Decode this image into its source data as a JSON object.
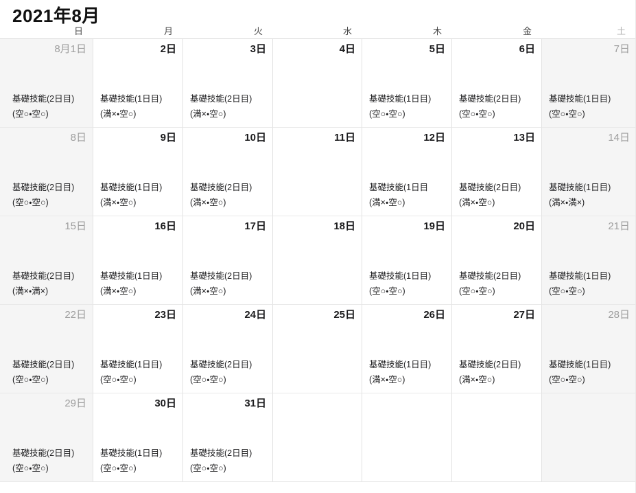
{
  "title": "2021年8月",
  "weekdays": [
    "日",
    "月",
    "火",
    "水",
    "木",
    "金",
    "土"
  ],
  "colors": {
    "background": "#ffffff",
    "weekend_cell_bg": "#f5f5f5",
    "grid_line": "#e2e2e2",
    "header_line": "#d9d9d9",
    "title_text": "#111111",
    "weekday_label": "#4a4a4a",
    "saturday_label": "#b5b5b5",
    "date_weekday": "#1c1c1e",
    "date_weekend": "#9e9e9e",
    "event_text": "#1d1d1f"
  },
  "weeks": [
    [
      {
        "date": "8月1日",
        "event": {
          "title": "基礎技能(2日目)",
          "availability": "(空○・空○)"
        }
      },
      {
        "date": "2日",
        "event": {
          "title": "基礎技能(1日目)",
          "availability": "(満×・空○)"
        }
      },
      {
        "date": "3日",
        "event": {
          "title": "基礎技能(2日目)",
          "availability": "(満×・空○)"
        }
      },
      {
        "date": "4日",
        "event": null
      },
      {
        "date": "5日",
        "event": {
          "title": "基礎技能(1日目)",
          "availability": "(空○・空○)"
        }
      },
      {
        "date": "6日",
        "event": {
          "title": "基礎技能(2日目)",
          "availability": "(空○・空○)"
        }
      },
      {
        "date": "7日",
        "event": {
          "title": "基礎技能(1日目)",
          "availability": "(空○・空○)"
        }
      }
    ],
    [
      {
        "date": "8日",
        "event": {
          "title": "基礎技能(2日目)",
          "availability": "(空○・空○)"
        }
      },
      {
        "date": "9日",
        "event": {
          "title": "基礎技能(1日目)",
          "availability": "(満×・空○)"
        }
      },
      {
        "date": "10日",
        "event": {
          "title": "基礎技能(2日目)",
          "availability": "(満×・空○)"
        }
      },
      {
        "date": "11日",
        "event": null
      },
      {
        "date": "12日",
        "event": {
          "title": "基礎技能(1日目",
          "availability": "(満×・空○)"
        }
      },
      {
        "date": "13日",
        "event": {
          "title": "基礎技能(2日目)",
          "availability": "(満×・空○)"
        }
      },
      {
        "date": "14日",
        "event": {
          "title": "基礎技能(1日目)",
          "availability": "(満×・満×)"
        }
      }
    ],
    [
      {
        "date": "15日",
        "event": {
          "title": "基礎技能(2日目)",
          "availability": "(満×・満×)"
        }
      },
      {
        "date": "16日",
        "event": {
          "title": "基礎技能(1日目)",
          "availability": "(満×・空○)"
        }
      },
      {
        "date": "17日",
        "event": {
          "title": "基礎技能(2日目)",
          "availability": "(満×・空○)"
        }
      },
      {
        "date": "18日",
        "event": null
      },
      {
        "date": "19日",
        "event": {
          "title": "基礎技能(1日目)",
          "availability": "(空○・空○)"
        }
      },
      {
        "date": "20日",
        "event": {
          "title": "基礎技能(2日目)",
          "availability": "(空○・空○)"
        }
      },
      {
        "date": "21日",
        "event": {
          "title": "基礎技能(1日目)",
          "availability": "(空○・空○)"
        }
      }
    ],
    [
      {
        "date": "22日",
        "event": {
          "title": "基礎技能(2日目)",
          "availability": "(空○・空○)"
        }
      },
      {
        "date": "23日",
        "event": {
          "title": "基礎技能(1日目)",
          "availability": "(空○・空○)"
        }
      },
      {
        "date": "24日",
        "event": {
          "title": "基礎技能(2日目)",
          "availability": "(空○・空○)"
        }
      },
      {
        "date": "25日",
        "event": null
      },
      {
        "date": "26日",
        "event": {
          "title": "基礎技能(1日目)",
          "availability": "(満×・空○)"
        }
      },
      {
        "date": "27日",
        "event": {
          "title": "基礎技能(2日目)",
          "availability": "(満×・空○)"
        }
      },
      {
        "date": "28日",
        "event": {
          "title": "基礎技能(1日目)",
          "availability": "(空○・空○)"
        }
      }
    ],
    [
      {
        "date": "29日",
        "event": {
          "title": "基礎技能(2日目)",
          "availability": "(空○・空○)"
        }
      },
      {
        "date": "30日",
        "event": {
          "title": "基礎技能(1日目)",
          "availability": "(空○・空○)"
        }
      },
      {
        "date": "31日",
        "event": {
          "title": "基礎技能(2日目)",
          "availability": "(空○・空○)"
        }
      },
      {
        "date": "",
        "event": null
      },
      {
        "date": "",
        "event": null
      },
      {
        "date": "",
        "event": null
      },
      {
        "date": "",
        "event": null
      }
    ]
  ]
}
